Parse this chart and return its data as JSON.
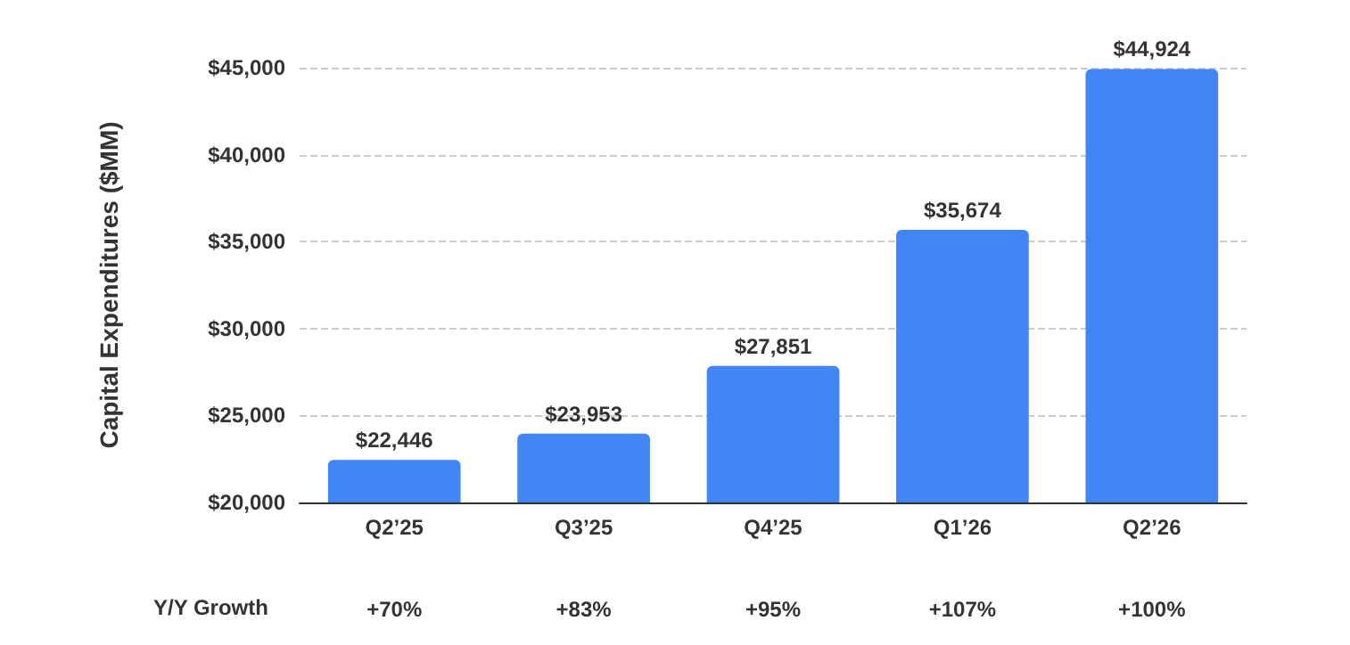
{
  "chart_data": {
    "type": "bar",
    "ylabel": "Capital Expenditures ($MM)",
    "categories": [
      "Q2’25",
      "Q3’25",
      "Q4’25",
      "Q1’26",
      "Q2’26"
    ],
    "values": [
      22446,
      23953,
      27851,
      35674,
      44924
    ],
    "color": "#4285f4",
    "value_labels": [
      "$22,446",
      "$23,953",
      "$27,851",
      "$35,674",
      "$44,924"
    ],
    "ylim": [
      20000,
      45000
    ],
    "yticks": [
      {
        "value": 20000,
        "label": "$20,000"
      },
      {
        "value": 25000,
        "label": "$25,000"
      },
      {
        "value": 30000,
        "label": "$30,000"
      },
      {
        "value": 35000,
        "label": "$35,000"
      },
      {
        "value": 40000,
        "label": "$40,000"
      },
      {
        "value": 45000,
        "label": "$45,000"
      }
    ],
    "grid": "y",
    "annotations": [
      "Y/Y Growth",
      "+70%",
      "+83%",
      "+95%",
      "+107%",
      "+100%"
    ]
  }
}
